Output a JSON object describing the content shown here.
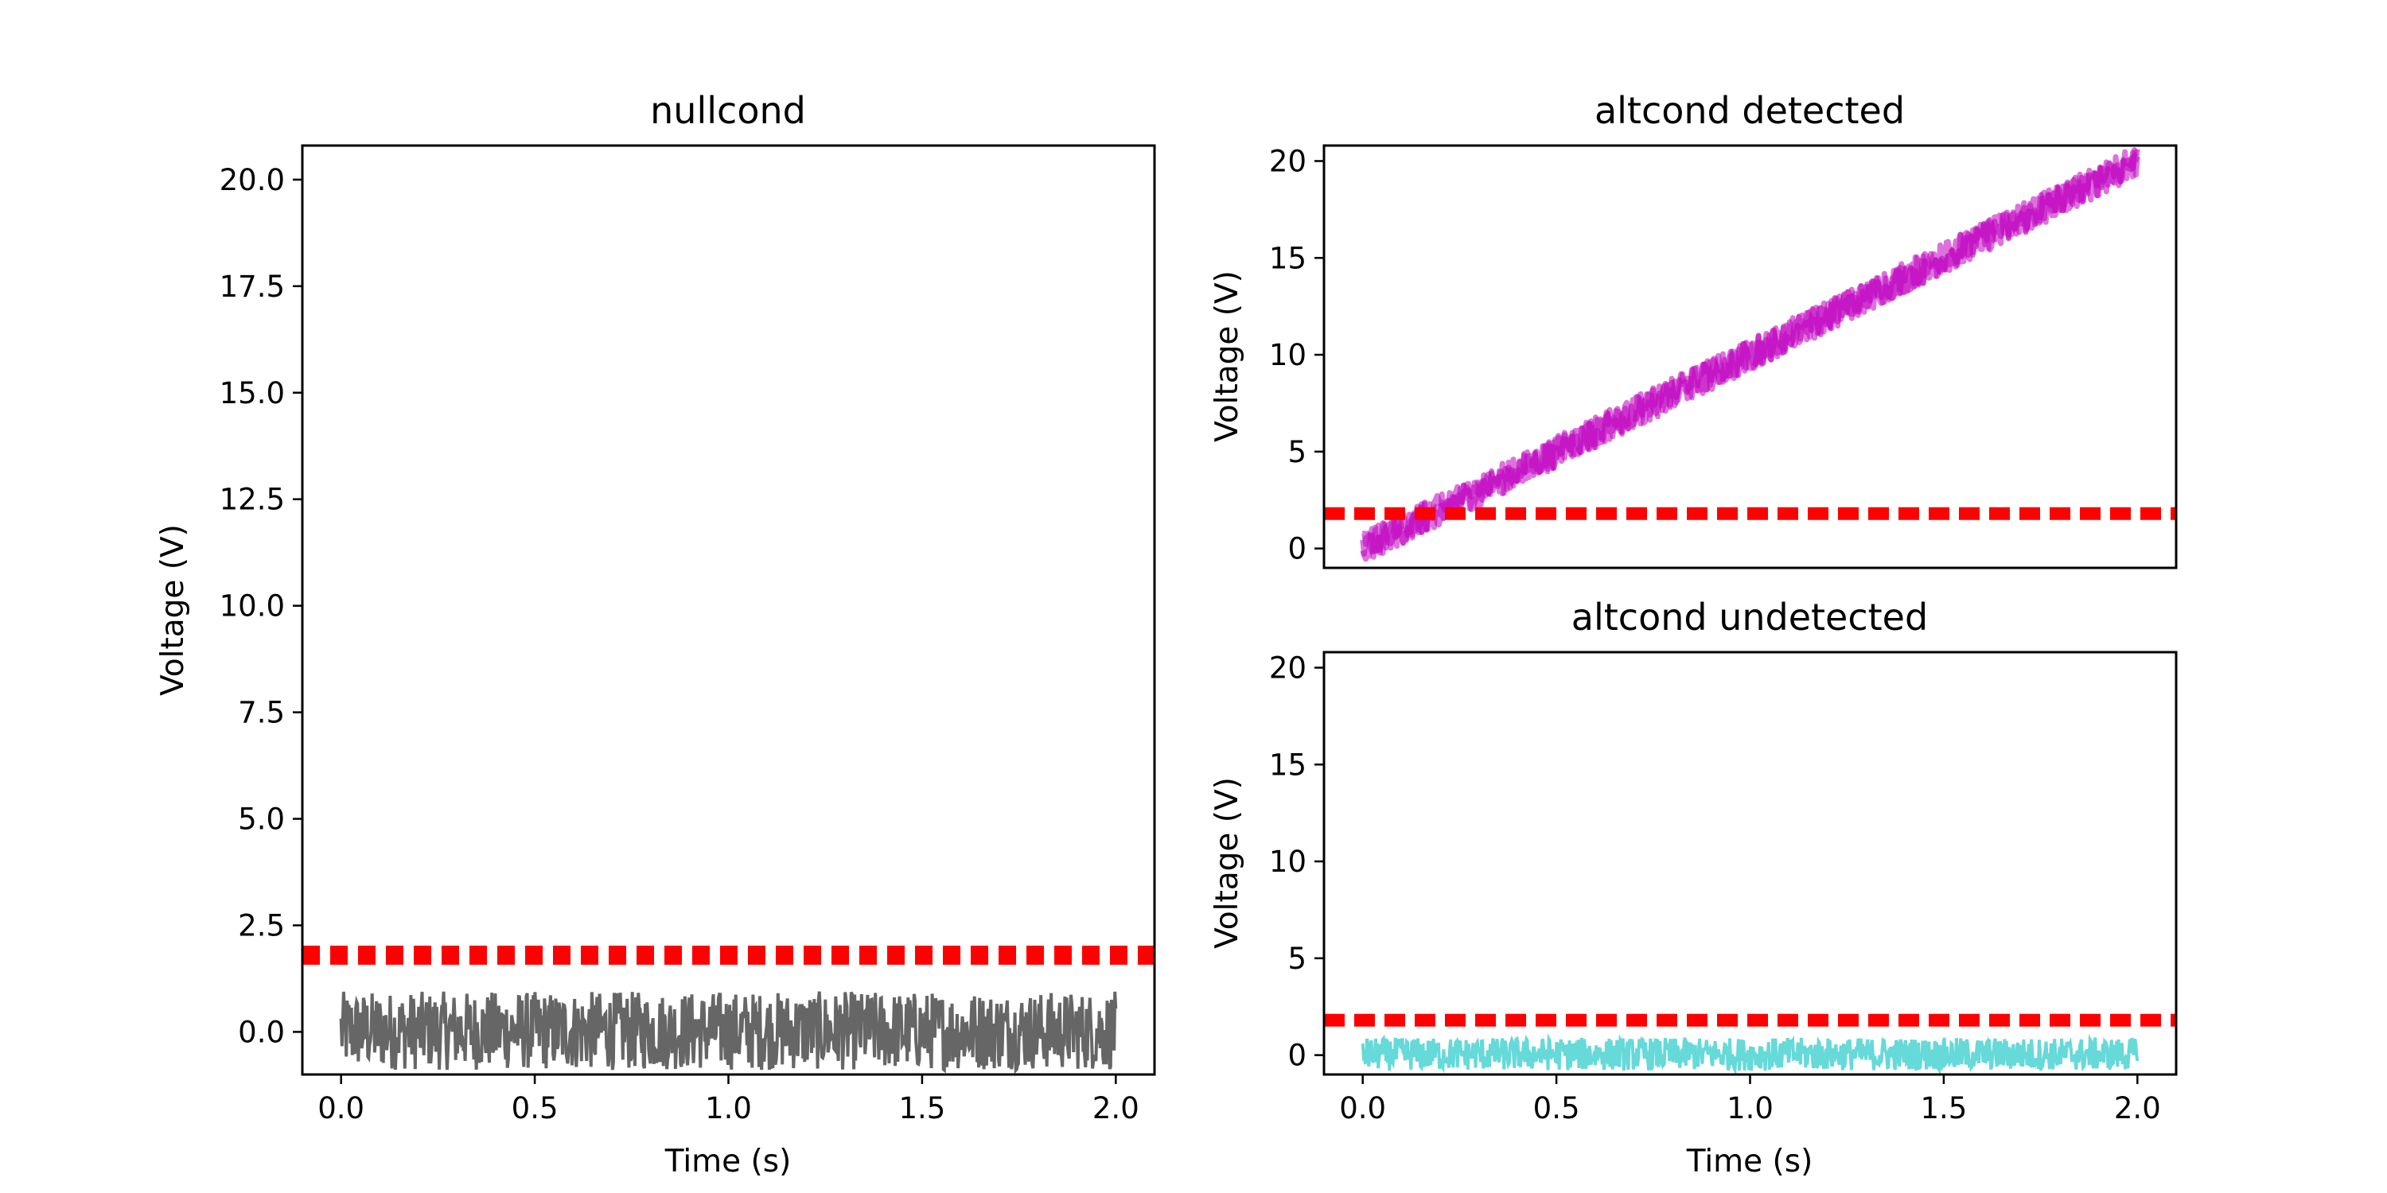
{
  "figure": {
    "panels": [
      {
        "title": "nullcond"
      },
      {
        "title": "altcond detected"
      },
      {
        "title": "altcond undetected"
      }
    ]
  },
  "chart_data": [
    {
      "type": "line",
      "title": "nullcond",
      "xlabel": "Time (s)",
      "ylabel": "Voltage (V)",
      "xlim": [
        -0.1,
        2.1
      ],
      "ylim": [
        -1.0,
        20.8
      ],
      "xticks": [
        "0.0",
        "0.5",
        "1.0",
        "1.5",
        "2.0"
      ],
      "yticks": [
        "0.0",
        "2.5",
        "5.0",
        "7.5",
        "10.0",
        "12.5",
        "15.0",
        "17.5",
        "20.0"
      ],
      "grid": false,
      "series": [
        {
          "kind": "noise",
          "x_range": [
            0,
            2
          ],
          "y_min": -0.9,
          "y_max": 0.95,
          "color": "#000000"
        },
        {
          "kind": "threshold",
          "style": "dashed",
          "y": 1.8,
          "color": "#ff0000"
        }
      ]
    },
    {
      "type": "line",
      "title": "altcond detected",
      "xlabel": "",
      "ylabel": "Voltage (V)",
      "xlim": [
        -0.1,
        2.1
      ],
      "ylim": [
        -1.0,
        20.8
      ],
      "yticks": [
        "0",
        "5",
        "10",
        "15",
        "20"
      ],
      "grid": false,
      "series": [
        {
          "kind": "ramp",
          "x_range": [
            0,
            2
          ],
          "y_start": 0,
          "y_end": 20,
          "color": "#bf00bf"
        },
        {
          "kind": "threshold",
          "style": "dashed",
          "y": 1.8,
          "color": "#ff0000"
        }
      ]
    },
    {
      "type": "line",
      "title": "altcond undetected",
      "xlabel": "Time (s)",
      "ylabel": "Voltage (V)",
      "xlim": [
        -0.1,
        2.1
      ],
      "ylim": [
        -1.0,
        20.8
      ],
      "xticks": [
        "0.0",
        "0.5",
        "1.0",
        "1.5",
        "2.0"
      ],
      "yticks": [
        "0",
        "5",
        "10",
        "15",
        "20"
      ],
      "grid": false,
      "series": [
        {
          "kind": "noise",
          "x_range": [
            0,
            2
          ],
          "y_min": -0.8,
          "y_max": 0.9,
          "color": "#00bfbf"
        },
        {
          "kind": "threshold",
          "style": "dashed",
          "y": 1.8,
          "color": "#ff0000"
        }
      ]
    }
  ]
}
